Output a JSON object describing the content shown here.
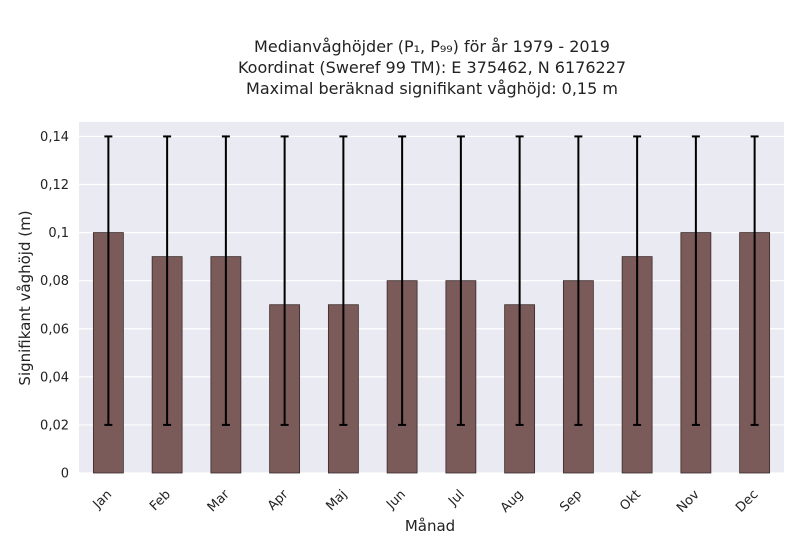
{
  "chart_data": {
    "type": "bar",
    "title_lines": [
      "Medianvåghöjder (P₁, P₉₉) för år 1979 - 2019",
      "Koordinat (Sweref 99 TM): E 375462, N 6176227",
      "Maximal beräknad signifikant våghöjd: 0,15 m"
    ],
    "xlabel": "Månad",
    "ylabel": "Signifikant våghöjd (m)",
    "categories": [
      "Jan",
      "Feb",
      "Mar",
      "Apr",
      "Maj",
      "Jun",
      "Jul",
      "Aug",
      "Sep",
      "Okt",
      "Nov",
      "Dec"
    ],
    "values": [
      0.1,
      0.09,
      0.09,
      0.07,
      0.07,
      0.08,
      0.08,
      0.07,
      0.08,
      0.09,
      0.1,
      0.1
    ],
    "error_low": [
      0.02,
      0.02,
      0.02,
      0.02,
      0.02,
      0.02,
      0.02,
      0.02,
      0.02,
      0.02,
      0.02,
      0.02
    ],
    "error_high": [
      0.14,
      0.14,
      0.14,
      0.14,
      0.14,
      0.14,
      0.14,
      0.14,
      0.14,
      0.14,
      0.14,
      0.14
    ],
    "ylim": [
      0,
      0.146
    ],
    "yticks": [
      0,
      0.02,
      0.04,
      0.06,
      0.08,
      0.1,
      0.12,
      0.14
    ],
    "ytick_labels": [
      "0",
      "0,02",
      "0,04",
      "0,06",
      "0,08",
      "0,1",
      "0,12",
      "0,14"
    ],
    "grid": true,
    "colors": {
      "bar": "#7b5a5a",
      "bar_edge": "#3a2a2a",
      "errorbar": "#000000",
      "plot_background": "#eaeaf2",
      "grid": "#ffffff"
    }
  }
}
